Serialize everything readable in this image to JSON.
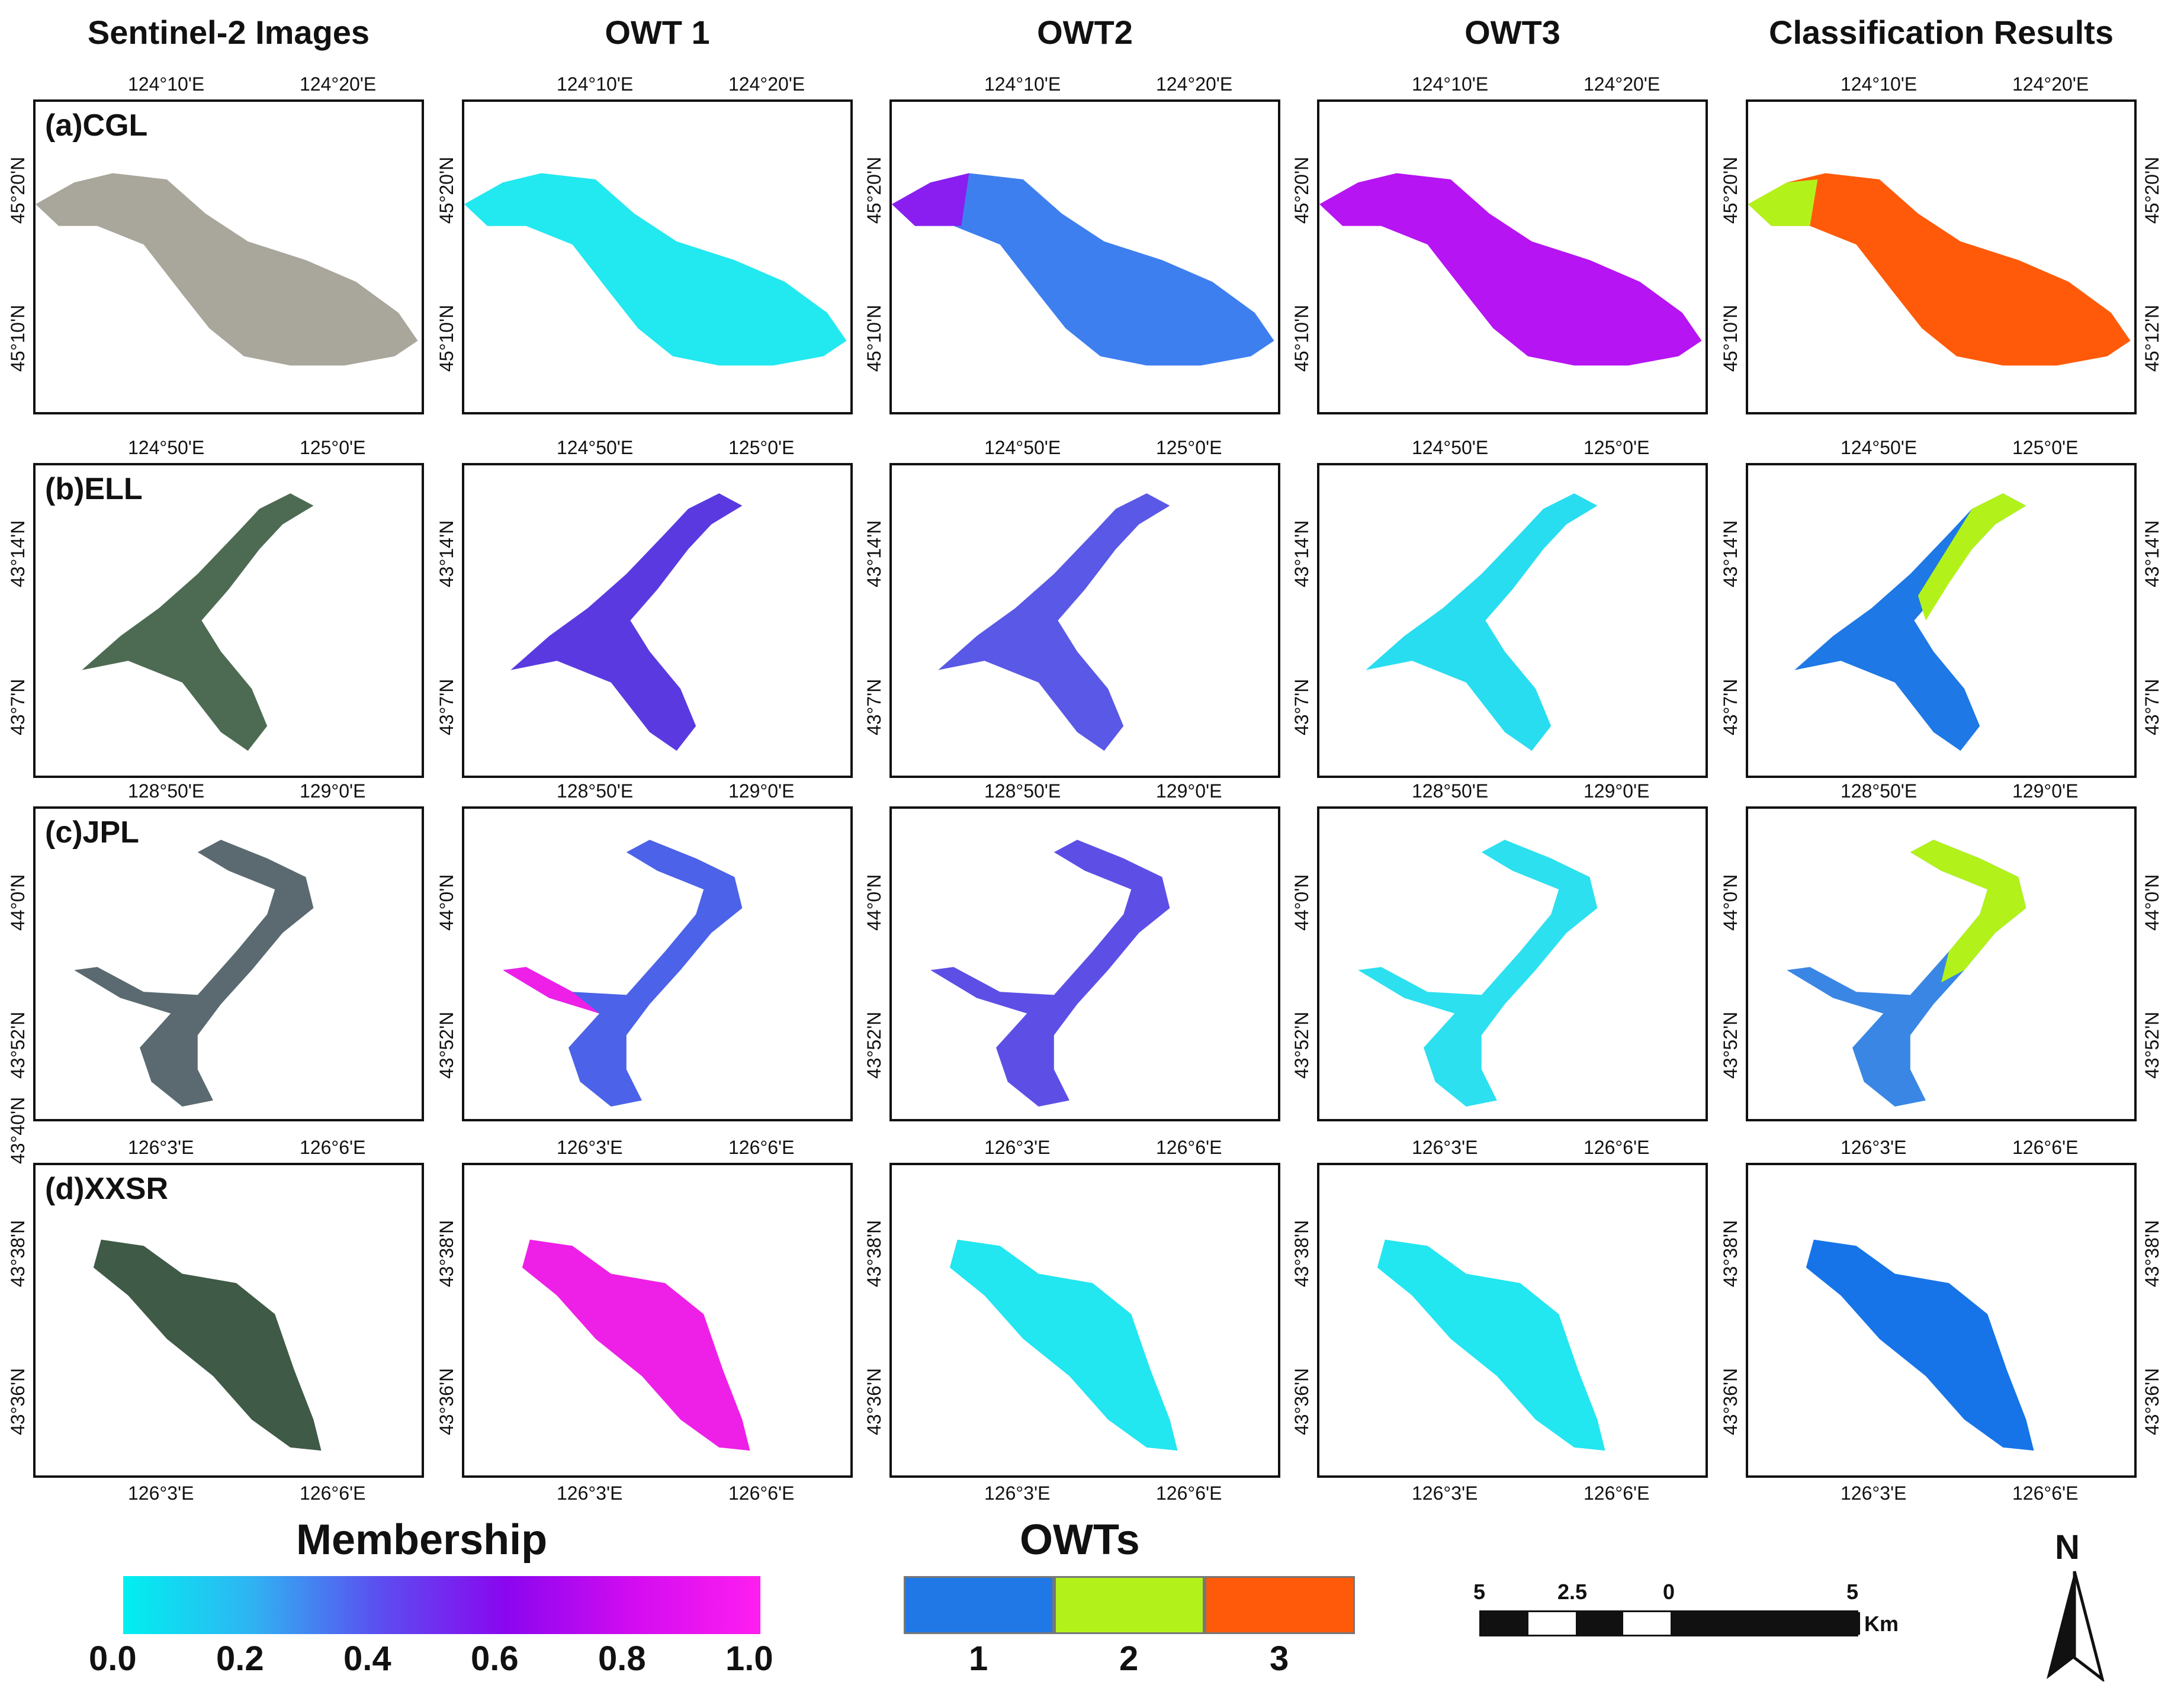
{
  "columns": [
    "Sentinel-2 Images",
    "OWT 1",
    "OWT2",
    "OWT3",
    "Classification Results"
  ],
  "rows": [
    {
      "label": "(a)CGL",
      "lon_ticks": [
        "124°10'E",
        "124°20'E"
      ],
      "lat_ticks": [
        "45°20'N",
        "45°10'N"
      ],
      "lat_ticks_right": [
        "45°20'N",
        "45°12'N"
      ],
      "lon_ticks_bottom": []
    },
    {
      "label": "(b)ELL",
      "lon_ticks": [
        "124°50'E",
        "125°0'E"
      ],
      "lat_ticks": [
        "43°14'N",
        "43°7'N"
      ],
      "lat_ticks_right": [
        "43°14'N",
        "43°7'N"
      ],
      "lon_ticks_bottom": []
    },
    {
      "label": "(c)JPL",
      "lon_ticks": [
        "128°50'E",
        "129°0'E"
      ],
      "lat_ticks": [
        "44°0'N",
        "43°52'N"
      ],
      "lat_ticks_right": [
        "44°0'N",
        "43°52'N"
      ],
      "lon_ticks_bottom": []
    },
    {
      "label": "(d)XXSR",
      "lon_ticks": [
        "126°3'E",
        "126°6'E"
      ],
      "lat_ticks": [
        "43°38'N",
        "43°36'N"
      ],
      "lat_ticks_right": [
        "43°38'N",
        "43°36'N"
      ],
      "lon_ticks_bottom": [
        "126°3'E",
        "126°6'E"
      ],
      "extra_lat_tick": "43°40'N"
    }
  ],
  "fills": [
    [
      "#a9a69c",
      "#22e8f0",
      "#3e7ff0",
      "#b614f2",
      "#ff5a0a"
    ],
    [
      "#4d6b52",
      "#5a3ae0",
      "#5a58e6",
      "#28ddf0",
      "#1e78e6"
    ],
    [
      "#5a6a70",
      "#4c62e8",
      "#5d4fe6",
      "#2ce0f0",
      "#3a86e4"
    ],
    [
      "#3f5a46",
      "#ee20e8",
      "#22e6f0",
      "#22e6f0",
      "#1674e8"
    ]
  ],
  "membership_legend": {
    "title": "Membership",
    "ticks": [
      "0.0",
      "0.2",
      "0.4",
      "0.6",
      "0.8",
      "1.0"
    ],
    "stops": [
      "#00f0f0",
      "#2fb4f2",
      "#5b4ff0",
      "#8a06f0",
      "#d20cf0",
      "#ff1ef0"
    ]
  },
  "owt_legend": {
    "title": "OWTs",
    "classes": [
      {
        "label": "1",
        "color": "#1f78e6"
      },
      {
        "label": "2",
        "color": "#b2f21a"
      },
      {
        "label": "3",
        "color": "#ff5a0a"
      }
    ]
  },
  "scale_bar": {
    "ticks": [
      "5",
      "2.5",
      "0",
      "5"
    ],
    "unit": "Km"
  },
  "north_arrow": {
    "label": "N"
  }
}
